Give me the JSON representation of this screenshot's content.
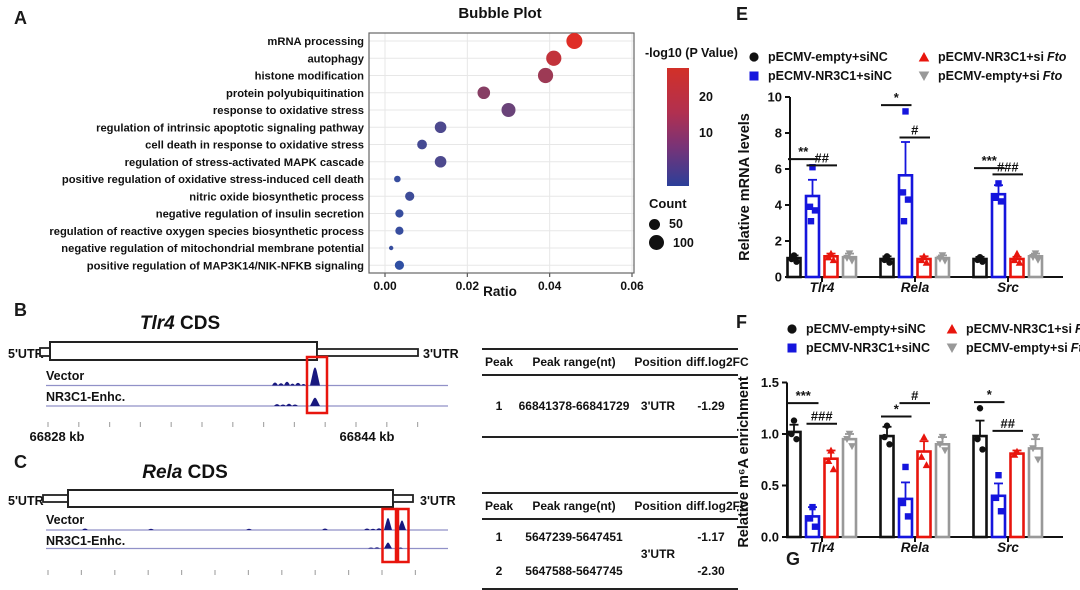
{
  "panel_labels": {
    "a": "A",
    "b": "B",
    "c": "C",
    "e": "E",
    "f": "F",
    "g": "G"
  },
  "chart_data": [
    {
      "type": "bubble",
      "title": "Bubble Plot",
      "xlabel": "Ratio",
      "xlim": [
        0,
        0.06
      ],
      "xticks": [
        "0.00",
        "0.02",
        "0.04",
        "0.06"
      ],
      "grid": true,
      "color_legend": {
        "title": "-log10 (P Value)",
        "tick_hi": "20",
        "tick_lo": "10",
        "top_color": "#d23028",
        "bottom_color": "#2b3f99"
      },
      "size_legend": {
        "title": "Count",
        "small": "50",
        "large": "100"
      },
      "points": [
        {
          "label": "mRNA processing",
          "ratio": 0.046,
          "count": 105,
          "neglog10p": 28
        },
        {
          "label": "autophagy",
          "ratio": 0.041,
          "count": 95,
          "neglog10p": 24
        },
        {
          "label": "histone modification",
          "ratio": 0.039,
          "count": 95,
          "neglog10p": 19
        },
        {
          "label": "protein polyubiquitination",
          "ratio": 0.024,
          "count": 65,
          "neglog10p": 16
        },
        {
          "label": "response to oxidative stress",
          "ratio": 0.03,
          "count": 80,
          "neglog10p": 12
        },
        {
          "label": "regulation of intrinsic apoptotic signaling pathway",
          "ratio": 0.0135,
          "count": 55,
          "neglog10p": 8
        },
        {
          "label": "cell death in response to oxidative stress",
          "ratio": 0.009,
          "count": 40,
          "neglog10p": 7
        },
        {
          "label": "regulation of stress-activated MAPK cascade",
          "ratio": 0.0135,
          "count": 55,
          "neglog10p": 8
        },
        {
          "label": "positive regulation of oxidative stress-induced cell death",
          "ratio": 0.003,
          "count": 18,
          "neglog10p": 5
        },
        {
          "label": "nitric oxide biosynthetic process",
          "ratio": 0.006,
          "count": 35,
          "neglog10p": 6
        },
        {
          "label": "negative regulation of insulin secretion",
          "ratio": 0.0035,
          "count": 28,
          "neglog10p": 5
        },
        {
          "label": "regulation of reactive oxygen species biosynthetic process",
          "ratio": 0.0035,
          "count": 28,
          "neglog10p": 5
        },
        {
          "label": "negative regulation of mitochondrial membrane potential",
          "ratio": 0.0015,
          "count": 8,
          "neglog10p": 5
        },
        {
          "label": "positive regulation of MAP3K14/NIK-NFKB signaling",
          "ratio": 0.0035,
          "count": 35,
          "neglog10p": 4
        }
      ]
    },
    {
      "type": "bar",
      "panel": "E",
      "ylabel": "Relative mRNA levels",
      "ylim": [
        0,
        10
      ],
      "yticks": [
        0,
        2,
        4,
        6,
        8,
        10
      ],
      "ytick_labels": [
        "0",
        "2",
        "4",
        "6",
        "8",
        "10"
      ],
      "categories": [
        "Tlr4",
        "Rela",
        "Src"
      ],
      "series": [
        {
          "name": "pECMV-empty+siNC",
          "color": "#111111",
          "marker": "circle",
          "values": [
            1.05,
            1.0,
            1.0
          ],
          "errors": [
            0.15,
            0.15,
            0.12
          ],
          "points": [
            [
              1.2,
              1.0,
              0.85
            ],
            [
              1.15,
              0.95,
              0.8
            ],
            [
              1.1,
              0.95,
              0.85
            ]
          ]
        },
        {
          "name": "pECMV-NR3C1+siNC",
          "color": "#1515dd",
          "marker": "square",
          "values": [
            4.5,
            5.65,
            4.6
          ],
          "errors": [
            0.9,
            1.85,
            0.5
          ],
          "points": [
            [
              6.1,
              3.9,
              3.7,
              3.1
            ],
            [
              9.2,
              4.7,
              4.3,
              3.1
            ],
            [
              5.2,
              4.4,
              4.2
            ]
          ]
        },
        {
          "name": "pECMV-NR3C1+si Fto",
          "color": "#e8150d",
          "marker": "triangle-up",
          "values": [
            1.15,
            1.0,
            1.0
          ],
          "errors": [
            0.15,
            0.15,
            0.12
          ],
          "points": [
            [
              1.3,
              1.1,
              0.95
            ],
            [
              1.15,
              0.95,
              0.8
            ],
            [
              1.3,
              0.95,
              0.8
            ]
          ]
        },
        {
          "name": "pECMV-empty+si Fto",
          "color": "#999999",
          "marker": "triangle-down",
          "values": [
            1.1,
            1.05,
            1.15
          ],
          "errors": [
            0.2,
            0.15,
            0.15
          ],
          "points": [
            [
              1.3,
              1.05,
              0.9
            ],
            [
              1.2,
              1.0,
              0.9
            ],
            [
              1.3,
              1.1,
              0.95
            ]
          ]
        }
      ],
      "significance": [
        {
          "group": 0,
          "a": 0,
          "b": 1,
          "label": "**",
          "y": 6.55
        },
        {
          "group": 0,
          "a": 1,
          "b": 2,
          "label": "##",
          "y": 6.2
        },
        {
          "group": 1,
          "a": 0,
          "b": 1,
          "label": "*",
          "y": 9.55
        },
        {
          "group": 1,
          "a": 1,
          "b": 2,
          "label": "#",
          "y": 7.75
        },
        {
          "group": 2,
          "a": 0,
          "b": 1,
          "label": "***",
          "y": 6.05
        },
        {
          "group": 2,
          "a": 1,
          "b": 2,
          "label": "###",
          "y": 5.7
        }
      ]
    },
    {
      "type": "bar",
      "panel": "F",
      "ylabel": "Relative m⁶A enrichment",
      "ylim": [
        0,
        1.5
      ],
      "yticks": [
        0,
        0.5,
        1.0,
        1.5
      ],
      "ytick_labels": [
        "0.0",
        "0.5",
        "1.0",
        "1.5"
      ],
      "categories": [
        "Tlr4",
        "Rela",
        "Src"
      ],
      "series": [
        {
          "name": "pECMV-empty+siNC",
          "color": "#111111",
          "marker": "circle",
          "values": [
            1.02,
            0.98,
            0.98
          ],
          "errors": [
            0.07,
            0.09,
            0.15
          ],
          "points": [
            [
              1.13,
              1.0,
              0.95
            ],
            [
              1.08,
              0.97,
              0.9
            ],
            [
              1.25,
              0.95,
              0.85
            ]
          ]
        },
        {
          "name": "pECMV-NR3C1+siNC",
          "color": "#1515dd",
          "marker": "square",
          "values": [
            0.2,
            0.37,
            0.4
          ],
          "errors": [
            0.09,
            0.16,
            0.12
          ],
          "points": [
            [
              0.29,
              0.18,
              0.1
            ],
            [
              0.68,
              0.33,
              0.2
            ],
            [
              0.6,
              0.38,
              0.25
            ]
          ]
        },
        {
          "name": "pECMV-NR3C1+si Fto",
          "color": "#e8150d",
          "marker": "triangle-up",
          "values": [
            0.76,
            0.83,
            0.81
          ],
          "errors": [
            0.08,
            0.1,
            0.03
          ],
          "points": [
            [
              0.84,
              0.74,
              0.66
            ],
            [
              0.97,
              0.78,
              0.7
            ],
            [
              0.83,
              0.8
            ]
          ]
        },
        {
          "name": "pECMV-empty+si Fto",
          "color": "#999999",
          "marker": "triangle-down",
          "values": [
            0.95,
            0.9,
            0.86
          ],
          "errors": [
            0.05,
            0.07,
            0.09
          ],
          "points": [
            [
              1.0,
              0.95,
              0.88
            ],
            [
              0.97,
              0.9,
              0.84
            ],
            [
              0.97,
              0.86,
              0.75
            ]
          ]
        }
      ],
      "significance": [
        {
          "group": 0,
          "a": 0,
          "b": 1,
          "label": "***",
          "y": 1.3
        },
        {
          "group": 0,
          "a": 1,
          "b": 2,
          "label": "###",
          "y": 1.1
        },
        {
          "group": 1,
          "a": 0,
          "b": 1,
          "label": "*",
          "y": 1.17
        },
        {
          "group": 1,
          "a": 1,
          "b": 2,
          "label": "#",
          "y": 1.3
        },
        {
          "group": 2,
          "a": 0,
          "b": 1,
          "label": "*",
          "y": 1.31
        },
        {
          "group": 2,
          "a": 1,
          "b": 2,
          "label": "##",
          "y": 1.03
        }
      ]
    }
  ],
  "bar_legend": {
    "entries": [
      {
        "marker": "circle",
        "color": "#111111",
        "text": "pECMV-empty+siNC",
        "italic": ""
      },
      {
        "marker": "triangle-up",
        "color": "#e8150d",
        "text": "pECMV-NR3C1+si",
        "italic": "Fto"
      },
      {
        "marker": "square",
        "color": "#1515dd",
        "text": "pECMV-NR3C1+siNC",
        "italic": ""
      },
      {
        "marker": "triangle-down",
        "color": "#999999",
        "text": "pECMV-empty+si",
        "italic": "Fto"
      }
    ]
  },
  "genomics": {
    "b": {
      "gene": "Tlr4",
      "suffix": " CDS",
      "utr5": "5'UTR",
      "utr3": "3'UTR",
      "tracks": [
        "Vector",
        "NR3C1-Enhc."
      ],
      "axis_labels": [
        "66828 kb",
        "66844 kb"
      ],
      "table": {
        "headers": [
          "Peak",
          "Peak range(nt)",
          "Position",
          "diff.log2FC"
        ],
        "rows": [
          {
            "peak": "1",
            "range": "66841378-66841729",
            "position": "3'UTR",
            "fc": "-1.29"
          }
        ]
      }
    },
    "c": {
      "gene": "Rela",
      "suffix": " CDS",
      "utr5": "5'UTR",
      "utr3": "3'UTR",
      "tracks": [
        "Vector",
        "NR3C1-Enhc."
      ],
      "table": {
        "headers": [
          "Peak",
          "Peak range(nt)",
          "Position",
          "diff.log2FC"
        ],
        "position_shared": "3'UTR",
        "rows": [
          {
            "peak": "1",
            "range": "5647239-5647451",
            "fc": "-1.17"
          },
          {
            "peak": "2",
            "range": "5647588-5647745",
            "fc": "-2.30"
          }
        ]
      }
    }
  },
  "colors": {
    "black": "#111111",
    "blue": "#1515dd",
    "red": "#e8150d",
    "gray": "#999999",
    "track_peak": "#18187f",
    "track_line": "#9191c8",
    "highlight_box": "#e8150d"
  }
}
